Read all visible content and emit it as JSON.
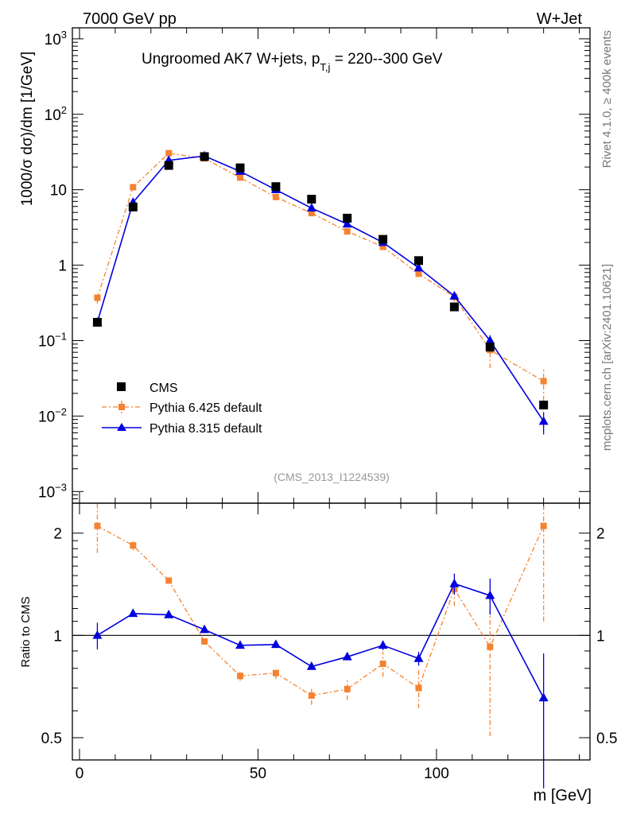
{
  "header": {
    "energy_label": "7000 GeV pp",
    "process_label": "W+Jet",
    "side_rivet": "Rivet 4.1.0, ≥ 400k events",
    "side_mcplots": "mcplots.cern.ch [arXiv:2401.10621]"
  },
  "chart_data": [
    {
      "type": "scatter",
      "panel": "main",
      "title_main": "Ungroomed AK7 W+jets, p",
      "title_sub": "T,j",
      "title_tail": " = 220--300 GeV",
      "analysis_id": "(CMS_2013_I1224539)",
      "ylabel": "1000/σ  dσ)/dm [1/GeV]",
      "yscale": "log",
      "ylim": [
        0.0007,
        1400
      ],
      "xlim": [
        -2,
        143
      ],
      "y_ticks": [
        {
          "value": 0.001,
          "base": "10",
          "exp": "−3"
        },
        {
          "value": 0.01,
          "base": "10",
          "exp": "−2"
        },
        {
          "value": 0.1,
          "base": "10",
          "exp": "−1"
        },
        {
          "value": 1,
          "base": "1",
          "exp": ""
        },
        {
          "value": 10,
          "base": "10",
          "exp": ""
        },
        {
          "value": 100,
          "base": "10",
          "exp": "2"
        },
        {
          "value": 1000,
          "base": "10",
          "exp": "3"
        }
      ],
      "legend_position": "lower-left",
      "series": [
        {
          "name": "CMS",
          "style": "data",
          "color": "#000000",
          "x": [
            5,
            15,
            25,
            35,
            45,
            55,
            65,
            75,
            85,
            95,
            105,
            115,
            130
          ],
          "y": [
            0.175,
            5.9,
            21,
            27.5,
            19.5,
            11,
            7.5,
            4.2,
            2.2,
            1.15,
            0.28,
            0.082,
            0.014
          ]
        },
        {
          "name": "Pythia 6.425 default",
          "style": "dashdot",
          "color": "#f58231",
          "x": [
            5,
            15,
            25,
            35,
            45,
            55,
            65,
            75,
            85,
            95,
            105,
            115,
            130
          ],
          "y": [
            0.37,
            10.8,
            30.5,
            26,
            14.5,
            8.0,
            4.9,
            2.8,
            1.75,
            0.77,
            0.38,
            0.075,
            0.029
          ],
          "err_lo": [
            0.06,
            0.4,
            0.6,
            0.5,
            0.4,
            0.3,
            0.2,
            0.15,
            0.1,
            0.07,
            0.05,
            0.032,
            0.013
          ],
          "err_hi": [
            0.07,
            0.4,
            0.6,
            0.5,
            0.4,
            0.3,
            0.2,
            0.15,
            0.1,
            0.07,
            0.05,
            0.032,
            0.014
          ]
        },
        {
          "name": "Pythia 8.315 default",
          "style": "solid",
          "color": "#0000dd",
          "x": [
            5,
            15,
            25,
            35,
            45,
            55,
            65,
            75,
            85,
            95,
            105,
            115,
            130
          ],
          "y": [
            0.175,
            6.8,
            24.5,
            28,
            17.5,
            10.0,
            5.7,
            3.5,
            2.0,
            0.92,
            0.39,
            0.1,
            0.0085
          ],
          "err_lo": [
            0.015,
            0.3,
            0.5,
            0.5,
            0.4,
            0.3,
            0.2,
            0.1,
            0.08,
            0.05,
            0.04,
            0.018,
            0.0028
          ],
          "err_hi": [
            0.015,
            0.3,
            0.5,
            0.5,
            0.4,
            0.3,
            0.2,
            0.1,
            0.08,
            0.05,
            0.04,
            0.018,
            0.0028
          ]
        }
      ]
    },
    {
      "type": "line",
      "panel": "ratio",
      "ylabel": "Ratio to CMS",
      "xlabel": "m [GeV]",
      "yscale": "log",
      "ylim": [
        0.43,
        2.45
      ],
      "xlim": [
        -2,
        143
      ],
      "x_ticks": [
        0,
        50,
        100
      ],
      "y_ticks": [
        0.5,
        1,
        2
      ],
      "reference_line": 1,
      "series": [
        {
          "name": "Pythia 6.425 default",
          "color": "#f58231",
          "x": [
            5,
            15,
            25,
            35,
            45,
            55,
            65,
            75,
            85,
            95,
            105,
            115,
            130
          ],
          "y": [
            2.1,
            1.84,
            1.45,
            0.96,
            0.76,
            0.775,
            0.665,
            0.695,
            0.825,
            0.7,
            1.37,
            0.925,
            2.1
          ],
          "err_lo": [
            0.35,
            0.06,
            0.03,
            0.02,
            0.025,
            0.03,
            0.04,
            0.05,
            0.07,
            0.09,
            0.15,
            0.42,
            1.0
          ],
          "err_hi": [
            0.35,
            0.06,
            0.03,
            0.02,
            0.025,
            0.03,
            0.04,
            0.05,
            0.07,
            0.09,
            0.15,
            0.42,
            0.3
          ]
        },
        {
          "name": "Pythia 8.315 default",
          "color": "#0000dd",
          "x": [
            5,
            15,
            25,
            35,
            45,
            55,
            65,
            75,
            85,
            95,
            105,
            115,
            130
          ],
          "y": [
            1.0,
            1.16,
            1.15,
            1.04,
            0.935,
            0.94,
            0.81,
            0.865,
            0.935,
            0.855,
            1.42,
            1.31,
            0.655
          ],
          "err_lo": [
            0.09,
            0.02,
            0.01,
            0.01,
            0.01,
            0.01,
            0.01,
            0.015,
            0.03,
            0.04,
            0.1,
            0.16,
            0.3
          ],
          "err_hi": [
            0.09,
            0.02,
            0.01,
            0.01,
            0.01,
            0.01,
            0.01,
            0.015,
            0.03,
            0.04,
            0.1,
            0.16,
            0.23
          ]
        }
      ]
    }
  ]
}
